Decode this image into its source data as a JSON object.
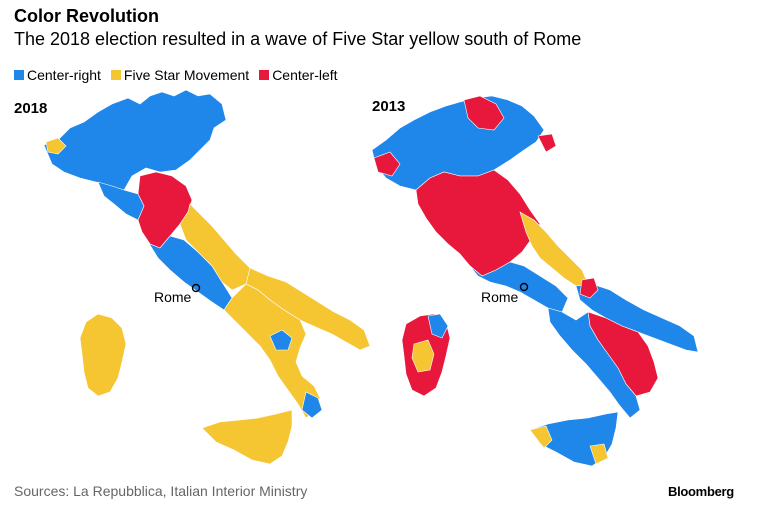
{
  "header": {
    "title": "Color Revolution",
    "subtitle": "The 2018 election resulted in a wave of Five Star yellow south of Rome"
  },
  "legend": [
    {
      "label": "Center-right",
      "color": "#1f86ea"
    },
    {
      "label": "Five Star Movement",
      "color": "#f6c532"
    },
    {
      "label": "Center-left",
      "color": "#e8183c"
    }
  ],
  "maps": [
    {
      "year": "2018",
      "rome_label": "Rome"
    },
    {
      "year": "2013",
      "rome_label": "Rome"
    }
  ],
  "footer": {
    "source": "Sources: La Repubblica, Italian Interior Ministry",
    "brand": "Bloomberg"
  }
}
